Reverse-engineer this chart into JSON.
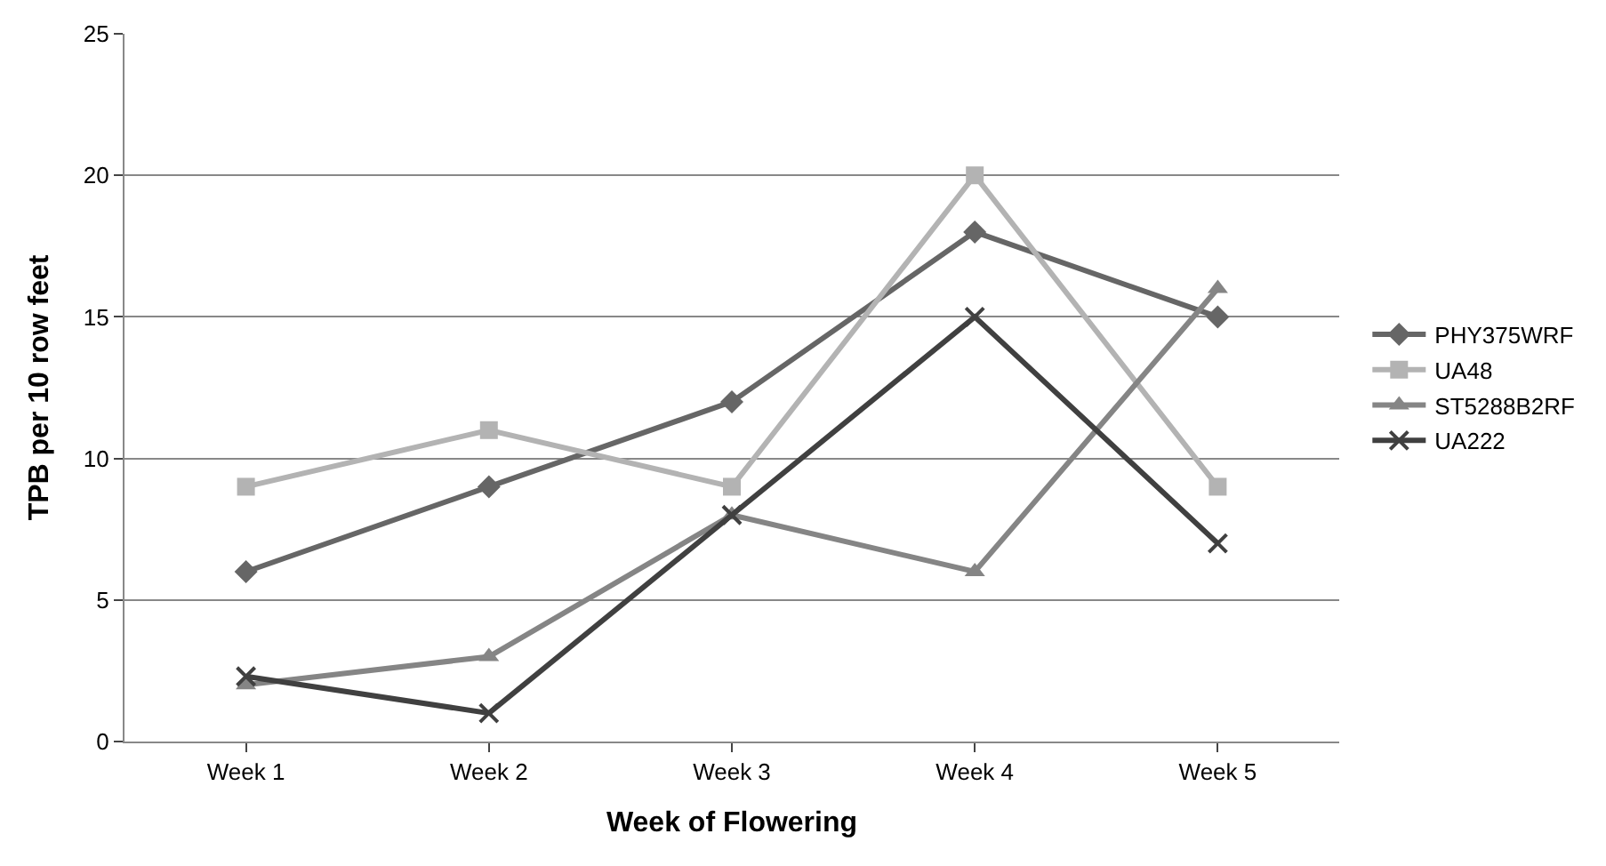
{
  "chart_data": {
    "type": "line",
    "xlabel": "Week of Flowering",
    "ylabel": "TPB per 10 row feet",
    "categories": [
      "Week 1",
      "Week 2",
      "Week 3",
      "Week 4",
      "Week 5"
    ],
    "series": [
      {
        "name": "PHY375WRF",
        "color": "#666666",
        "marker": "diamond",
        "values": [
          6,
          9,
          12,
          18,
          15
        ]
      },
      {
        "name": "UA48",
        "color": "#b3b3b3",
        "marker": "square",
        "values": [
          9,
          11,
          9,
          20,
          9
        ]
      },
      {
        "name": "ST5288B2RF",
        "color": "#858585",
        "marker": "triangle",
        "values": [
          2,
          3,
          8,
          6,
          16
        ]
      },
      {
        "name": "UA222",
        "color": "#404040",
        "marker": "cross",
        "values": [
          2.3,
          1,
          8,
          15,
          7
        ]
      }
    ],
    "ylim": [
      0,
      25
    ],
    "yticks": [
      0,
      5,
      10,
      15,
      20,
      25
    ],
    "grid": "y",
    "legend": "right",
    "line_style": "solid"
  }
}
